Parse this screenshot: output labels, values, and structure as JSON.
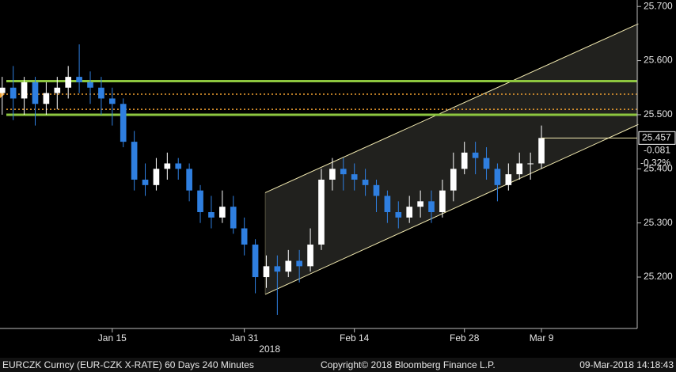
{
  "chart_data": {
    "type": "candlestick",
    "title": "EURCZK Curncy (EUR-CZK X-RATE) 60 Days 240 Minutes",
    "copyright": "Copyright© 2018 Bloomberg Finance L.P.",
    "timestamp": "09-Mar-2018 14:18:43",
    "year_label": "2018",
    "up_color": "#ffffff",
    "down_color": "#2f7fe0",
    "open": [
      25.54,
      25.55,
      25.53,
      25.56,
      25.52,
      25.54,
      25.55,
      25.57,
      25.56,
      25.55,
      25.53,
      25.52,
      25.45,
      25.38,
      25.37,
      25.4,
      25.41,
      25.4,
      25.36,
      25.32,
      25.31,
      25.33,
      25.29,
      25.26,
      25.2,
      25.22,
      25.21,
      25.23,
      25.22,
      25.26,
      25.38,
      25.4,
      25.39,
      25.38,
      25.37,
      25.35,
      25.32,
      25.31,
      25.33,
      25.34,
      25.32,
      25.36,
      25.4,
      25.43,
      25.42,
      25.4,
      25.37,
      25.39,
      25.41,
      25.41
    ],
    "high": [
      25.57,
      25.59,
      25.57,
      25.57,
      25.56,
      25.57,
      25.59,
      25.63,
      25.58,
      25.57,
      25.55,
      25.53,
      25.47,
      25.41,
      25.42,
      25.43,
      25.42,
      25.41,
      25.37,
      25.35,
      25.36,
      25.35,
      25.31,
      25.27,
      25.24,
      25.24,
      25.25,
      25.25,
      25.29,
      25.4,
      25.42,
      25.42,
      25.41,
      25.4,
      25.38,
      25.36,
      25.34,
      25.35,
      25.36,
      25.36,
      25.38,
      25.43,
      25.45,
      25.45,
      25.44,
      25.41,
      25.41,
      25.43,
      25.43,
      25.48
    ],
    "low": [
      25.5,
      25.49,
      25.5,
      25.48,
      25.5,
      25.51,
      25.53,
      25.54,
      25.52,
      25.5,
      25.48,
      25.44,
      25.36,
      25.35,
      25.36,
      25.38,
      25.38,
      25.34,
      25.3,
      25.29,
      25.3,
      25.28,
      25.24,
      25.17,
      25.18,
      25.13,
      25.2,
      25.19,
      25.21,
      25.25,
      25.36,
      25.36,
      25.36,
      25.35,
      25.32,
      25.3,
      25.29,
      25.3,
      25.31,
      25.3,
      25.31,
      25.34,
      25.39,
      25.39,
      25.38,
      25.34,
      25.36,
      25.38,
      25.38,
      25.4
    ],
    "close": [
      25.55,
      25.53,
      25.56,
      25.52,
      25.54,
      25.55,
      25.57,
      25.56,
      25.55,
      25.53,
      25.52,
      25.45,
      25.38,
      25.37,
      25.4,
      25.41,
      25.4,
      25.36,
      25.32,
      25.31,
      25.33,
      25.29,
      25.26,
      25.2,
      25.22,
      25.21,
      25.23,
      25.22,
      25.26,
      25.38,
      25.4,
      25.39,
      25.38,
      25.37,
      25.35,
      25.32,
      25.31,
      25.33,
      25.34,
      25.32,
      25.36,
      25.4,
      25.43,
      25.42,
      25.4,
      25.37,
      25.39,
      25.41,
      25.41,
      25.457
    ],
    "xlim": [
      -0.2,
      57.7
    ],
    "xticks": [
      {
        "value": 10,
        "label": "Jan 15"
      },
      {
        "value": 22,
        "label": "Jan 31"
      },
      {
        "value": 32,
        "label": "Feb 14"
      },
      {
        "value": 42,
        "label": "Feb 28"
      },
      {
        "value": 49,
        "label": "Mar 9"
      }
    ],
    "ylim": [
      25.105,
      25.712
    ],
    "yticks": [
      {
        "value": 25.2,
        "label": "25.200"
      },
      {
        "value": 25.3,
        "label": "25.300"
      },
      {
        "value": 25.4,
        "label": "25.400"
      },
      {
        "value": 25.5,
        "label": "25.500"
      },
      {
        "value": 25.6,
        "label": "25.600"
      },
      {
        "value": 25.7,
        "label": "25.700"
      }
    ],
    "hlines": [
      {
        "value": 25.562,
        "color": "#8dc63f",
        "style": "solid"
      },
      {
        "value": 25.538,
        "color": "#f0a030",
        "style": "dotted"
      },
      {
        "value": 25.51,
        "color": "#f0a030",
        "style": "dotted"
      },
      {
        "value": 25.5,
        "color": "#8dc63f",
        "style": "solid"
      }
    ],
    "channel": {
      "color": "#f2eab0",
      "x": [
        23.9,
        57.8
      ],
      "upper": [
        25.356,
        25.668
      ],
      "lower": [
        25.168,
        25.482
      ]
    },
    "last": {
      "value": 25.457,
      "change": -0.081,
      "change_pct": {
        "value": -0.32,
        "label": "-0.32%"
      }
    }
  }
}
